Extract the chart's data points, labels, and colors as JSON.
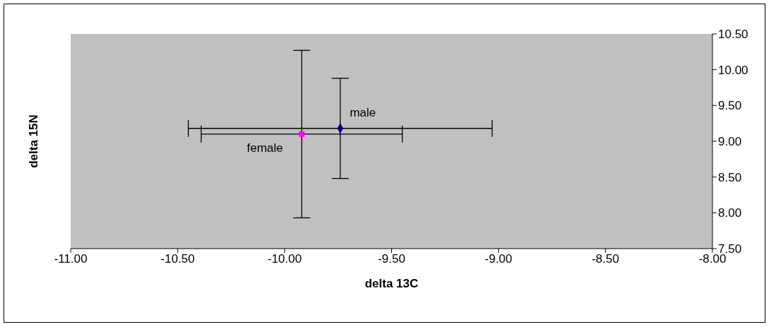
{
  "chart_data": {
    "type": "scatter",
    "xlabel": "delta 13C",
    "ylabel": "delta 15N",
    "xlim": [
      -11,
      -8
    ],
    "xticks": [
      {
        "value": -11,
        "label": "-11.00"
      },
      {
        "value": -10.5,
        "label": "-10.50"
      },
      {
        "value": -10,
        "label": "-10.00"
      },
      {
        "value": -9.5,
        "label": "-9.50"
      },
      {
        "value": -9,
        "label": "-9.00"
      },
      {
        "value": -8.5,
        "label": "-8.50"
      },
      {
        "value": -8,
        "label": "-8.00"
      }
    ],
    "ylim": [
      7.5,
      10.5
    ],
    "yticks": [
      {
        "value": 7.5,
        "label": "7.50"
      },
      {
        "value": 8,
        "label": "8.00"
      },
      {
        "value": 8.5,
        "label": "8.50"
      },
      {
        "value": 9,
        "label": "9.00"
      },
      {
        "value": 9.5,
        "label": "9.50"
      },
      {
        "value": 10,
        "label": "10.00"
      },
      {
        "value": 10.5,
        "label": "10.50"
      }
    ],
    "grid": false,
    "legend": false,
    "series": [
      {
        "name": "male",
        "color": "#000080",
        "marker": "diamond",
        "x": [
          -9.74
        ],
        "values": [
          9.18
        ],
        "errors": [
          0.7
        ],
        "xerrors": [
          0.71
        ]
      },
      {
        "name": "female",
        "color": "#ff00ff",
        "marker": "square",
        "x": [
          -9.92
        ],
        "values": [
          9.1
        ],
        "errors": [
          1.17
        ],
        "xerrors": [
          0.47
        ]
      }
    ]
  }
}
